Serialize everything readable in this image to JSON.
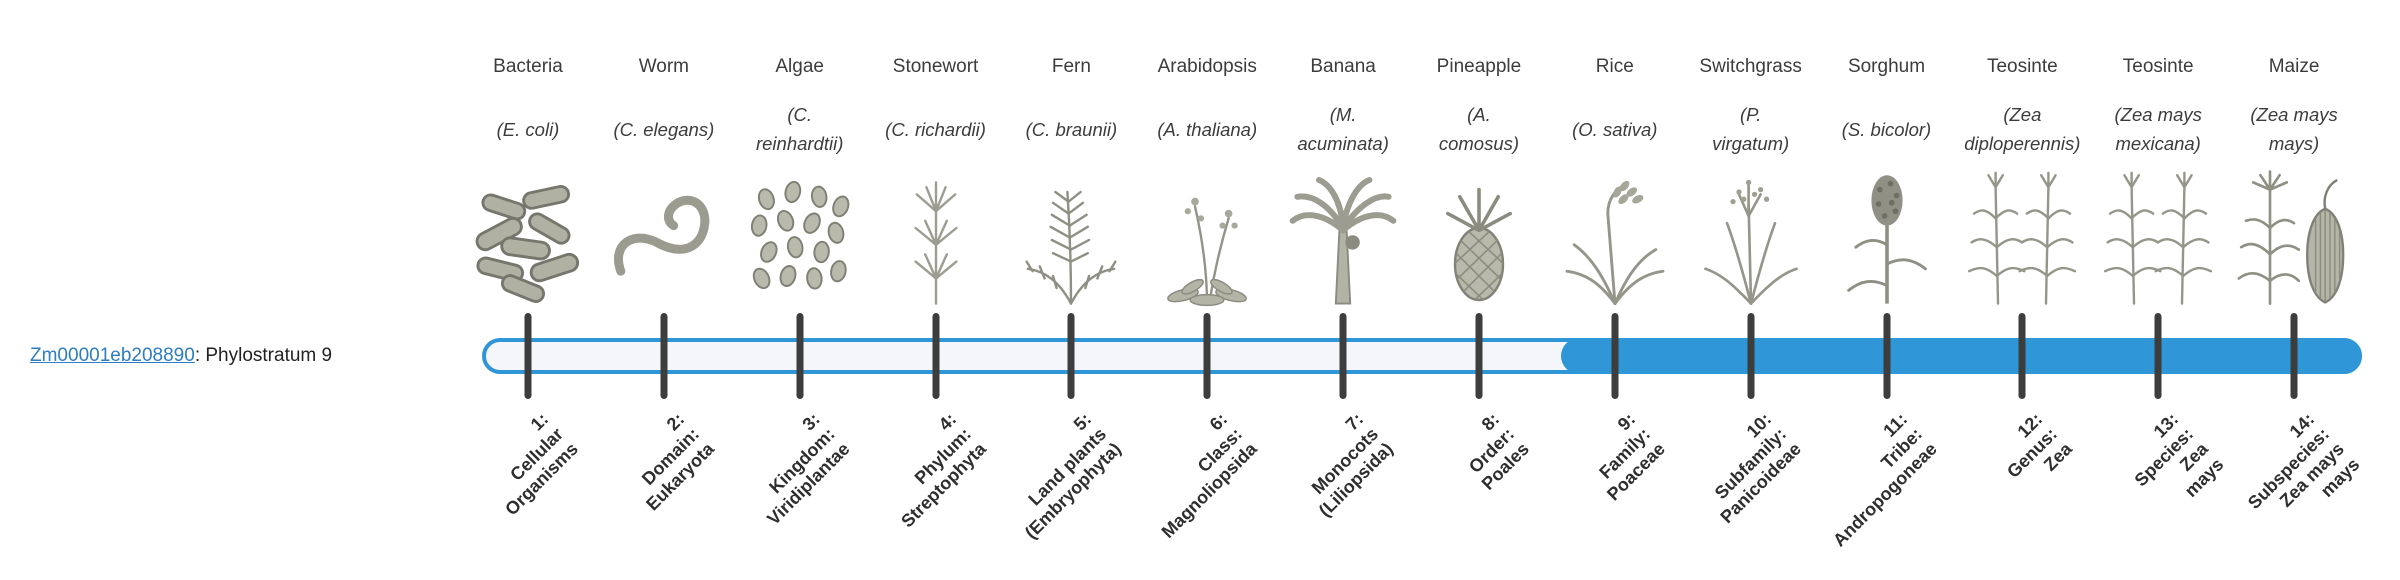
{
  "gene": {
    "id": "Zm00001eb208890",
    "label_suffix": ": Phylostratum 9",
    "phylostratum": 9,
    "link_color": "#2e7cc3"
  },
  "timeline": {
    "accent_color": "#2f96d8",
    "track_background": "#f4f6f9",
    "tick_color": "#3d3d3d",
    "total_strata": 14,
    "fill_start_stratum": 9
  },
  "columns": [
    {
      "name": "Bacteria",
      "sci_lines": [
        "(E. coli)"
      ],
      "icon": "bacteria-illustration",
      "stratum_lines": [
        "1:",
        "Cellular",
        "Organisms"
      ]
    },
    {
      "name": "Worm",
      "sci_lines": [
        "(C. elegans)"
      ],
      "icon": "worm-illustration",
      "stratum_lines": [
        "2:",
        "Domain:",
        "Eukaryota"
      ]
    },
    {
      "name": "Algae",
      "sci_lines": [
        "(C.",
        "reinhardtii)"
      ],
      "icon": "algae-illustration",
      "stratum_lines": [
        "3:",
        "Kingdom:",
        "Viridiplantae"
      ]
    },
    {
      "name": "Stonewort",
      "sci_lines": [
        "(C. richardii)"
      ],
      "icon": "stonewort-illustration",
      "stratum_lines": [
        "4:",
        "Phylum:",
        "Streptophyta"
      ]
    },
    {
      "name": "Fern",
      "sci_lines": [
        "(C. braunii)"
      ],
      "icon": "fern-illustration",
      "stratum_lines": [
        "5:",
        "Land plants",
        "(Embryophyta)"
      ]
    },
    {
      "name": "Arabidopsis",
      "sci_lines": [
        "(A. thaliana)"
      ],
      "icon": "arabidopsis-illustration",
      "stratum_lines": [
        "6:",
        "Class:",
        "Magnoliopsida"
      ]
    },
    {
      "name": "Banana",
      "sci_lines": [
        "(M.",
        "acuminata)"
      ],
      "icon": "banana-illustration",
      "stratum_lines": [
        "7:",
        "Monocots",
        "(Liliopsida)"
      ]
    },
    {
      "name": "Pineapple",
      "sci_lines": [
        "(A.",
        "comosus)"
      ],
      "icon": "pineapple-illustration",
      "stratum_lines": [
        "8:",
        "Order:",
        "Poales"
      ]
    },
    {
      "name": "Rice",
      "sci_lines": [
        "(O. sativa)"
      ],
      "icon": "rice-illustration",
      "stratum_lines": [
        "9:",
        "Family:",
        "Poaceae"
      ]
    },
    {
      "name": "Switchgrass",
      "sci_lines": [
        "(P.",
        "virgatum)"
      ],
      "icon": "switchgrass-illustration",
      "stratum_lines": [
        "10:",
        "Subfamily:",
        "Panicoideae"
      ]
    },
    {
      "name": "Sorghum",
      "sci_lines": [
        "(S. bicolor)"
      ],
      "icon": "sorghum-illustration",
      "stratum_lines": [
        "11:",
        "Tribe:",
        "Andropogoneae"
      ]
    },
    {
      "name": "Teosinte",
      "sci_lines": [
        "(Zea",
        "diploperennis)"
      ],
      "icon": "teosinte-illustration",
      "stratum_lines": [
        "12:",
        "Genus:",
        "Zea"
      ]
    },
    {
      "name": "Teosinte",
      "sci_lines": [
        "(Zea mays",
        "mexicana)"
      ],
      "icon": "teosinte-illustration",
      "stratum_lines": [
        "13:",
        "Species:",
        "Zea",
        "mays"
      ]
    },
    {
      "name": "Maize",
      "sci_lines": [
        "(Zea mays",
        "mays)"
      ],
      "icon": "maize-illustration",
      "stratum_lines": [
        "14:",
        "Subspecies:",
        "Zea mays",
        "mays"
      ]
    }
  ]
}
